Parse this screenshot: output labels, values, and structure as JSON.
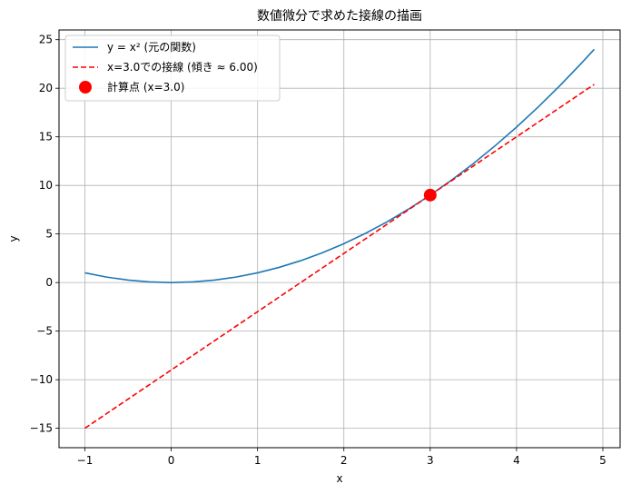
{
  "chart_data": {
    "type": "line",
    "title": "数値微分で求めた接線の描画",
    "xlabel": "x",
    "ylabel": "y",
    "xlim": [
      -1.3,
      5.2
    ],
    "ylim": [
      -17,
      26
    ],
    "xticks": [
      -1,
      0,
      1,
      2,
      3,
      4,
      5
    ],
    "xtick_labels": [
      "−1",
      "0",
      "1",
      "2",
      "3",
      "4",
      "5"
    ],
    "yticks": [
      -15,
      -10,
      -5,
      0,
      5,
      10,
      15,
      20,
      25
    ],
    "ytick_labels": [
      "−15",
      "−10",
      "−5",
      "0",
      "5",
      "10",
      "15",
      "20",
      "25"
    ],
    "grid": true,
    "legend_position": "top-left",
    "series": [
      {
        "name": "y = x² (元の関数)",
        "kind": "line",
        "style": "solid",
        "color": "#1f77b4",
        "x": [
          -1.0,
          -0.75,
          -0.5,
          -0.25,
          0.0,
          0.25,
          0.5,
          0.75,
          1.0,
          1.25,
          1.5,
          1.75,
          2.0,
          2.25,
          2.5,
          2.75,
          3.0,
          3.25,
          3.5,
          3.75,
          4.0,
          4.25,
          4.5,
          4.75,
          4.9
        ],
        "y": [
          1.0,
          0.5625,
          0.25,
          0.0625,
          0.0,
          0.0625,
          0.25,
          0.5625,
          1.0,
          1.5625,
          2.25,
          3.0625,
          4.0,
          5.0625,
          6.25,
          7.5625,
          9.0,
          10.5625,
          12.25,
          14.0625,
          16.0,
          18.0625,
          20.25,
          22.5625,
          24.01
        ]
      },
      {
        "name": "x=3.0での接線 (傾き ≈ 6.00)",
        "kind": "line",
        "style": "dashed",
        "color": "#ff0000",
        "x": [
          -1.0,
          4.9
        ],
        "y": [
          -15.0,
          20.4
        ]
      },
      {
        "name": "計算点 (x=3.0)",
        "kind": "point",
        "color": "#ff0000",
        "x": [
          3.0
        ],
        "y": [
          9.0
        ]
      }
    ]
  }
}
